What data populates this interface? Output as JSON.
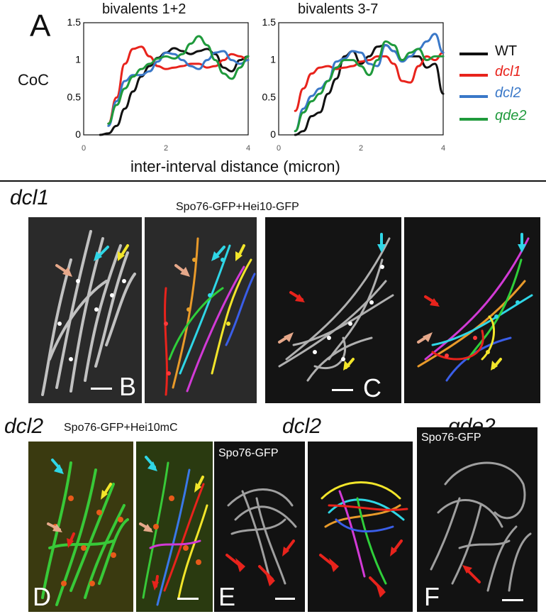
{
  "figure": {
    "panel_a_letter": "A",
    "y_axis_label": "CoC",
    "x_axis_label": "inter-interval distance (micron)",
    "legend": [
      {
        "label": "WT",
        "color": "#111111",
        "italic": false
      },
      {
        "label": "dcl1",
        "color": "#e8231c",
        "italic": true
      },
      {
        "label": "dcl2",
        "color": "#3a78c8",
        "italic": true
      },
      {
        "label": "qde2",
        "color": "#1f9a3c",
        "italic": true
      }
    ],
    "section_dcl1": "dcl1",
    "section_dcl1_subtitle": "Spo76-GFP+Hei10-GFP",
    "section_dcl2_left": "dcl2",
    "section_dcl2_left_subtitle": "Spo76-GFP+Hei10mC",
    "section_dcl2_mid": "dcl2",
    "section_qde2": "qde2",
    "label_spo76_e": "Spo76-GFP",
    "label_spo76_f": "Spo76-GFP",
    "letters": {
      "B": "B",
      "C": "C",
      "D": "D",
      "E": "E",
      "F": "F"
    }
  },
  "chart_data": [
    {
      "type": "line",
      "title": "bivalents 1+2",
      "ylabel": "CoC",
      "xlabel": "inter-interval distance (micron)",
      "xlim": [
        0,
        4
      ],
      "ylim": [
        0,
        1.5
      ],
      "xticks": [
        "0",
        "2",
        "4"
      ],
      "yticks": [
        "0",
        "0.5",
        "1",
        "1.5"
      ],
      "series": [
        {
          "name": "WT",
          "color": "#111111",
          "x": [
            0.4,
            0.6,
            0.8,
            1.0,
            1.2,
            1.4,
            1.6,
            1.8,
            2.0,
            2.2,
            2.4,
            2.6,
            2.8,
            3.0,
            3.2,
            3.4,
            3.6,
            3.8,
            4.0
          ],
          "y": [
            0.0,
            0.02,
            0.12,
            0.35,
            0.58,
            0.78,
            0.92,
            1.03,
            1.1,
            1.16,
            1.12,
            1.08,
            1.12,
            1.15,
            1.08,
            0.9,
            0.85,
            1.0,
            1.05
          ]
        },
        {
          "name": "dcl1",
          "color": "#e8231c",
          "x": [
            0.6,
            0.8,
            1.0,
            1.2,
            1.4,
            1.6,
            1.8,
            2.0,
            2.2,
            2.4,
            2.6,
            2.8,
            3.0,
            3.2,
            3.4,
            3.6,
            3.8,
            4.0
          ],
          "y": [
            0.15,
            0.5,
            0.95,
            1.15,
            1.18,
            1.05,
            0.92,
            0.88,
            0.9,
            0.92,
            0.95,
            0.95,
            0.9,
            0.92,
            1.0,
            1.08,
            1.05,
            1.0
          ]
        },
        {
          "name": "dcl2",
          "color": "#3a78c8",
          "x": [
            0.6,
            0.8,
            1.0,
            1.2,
            1.4,
            1.6,
            1.8,
            2.0,
            2.2,
            2.4,
            2.6,
            2.8,
            3.0,
            3.2,
            3.4,
            3.6,
            3.8,
            4.0
          ],
          "y": [
            0.12,
            0.45,
            0.72,
            0.8,
            0.8,
            0.85,
            0.98,
            1.1,
            1.08,
            1.0,
            0.92,
            0.88,
            1.0,
            1.1,
            1.12,
            1.0,
            0.95,
            1.0
          ]
        },
        {
          "name": "qde2",
          "color": "#1f9a3c",
          "x": [
            0.6,
            0.8,
            1.0,
            1.2,
            1.4,
            1.6,
            1.8,
            2.0,
            2.2,
            2.4,
            2.6,
            2.8,
            3.0,
            3.2,
            3.4,
            3.6,
            3.8,
            4.0
          ],
          "y": [
            0.15,
            0.4,
            0.62,
            0.78,
            0.88,
            0.95,
            1.02,
            1.05,
            1.02,
            1.08,
            1.22,
            1.32,
            1.2,
            1.0,
            0.82,
            0.75,
            0.9,
            1.05
          ]
        }
      ]
    },
    {
      "type": "line",
      "title": "bivalents 3-7",
      "ylabel": "",
      "xlabel": "inter-interval distance (micron)",
      "xlim": [
        0,
        4
      ],
      "ylim": [
        0,
        1.5
      ],
      "xticks": [
        "0",
        "2",
        "4"
      ],
      "yticks": [
        "0",
        "0.5",
        "1",
        "1.5"
      ],
      "series": [
        {
          "name": "WT",
          "color": "#111111",
          "x": [
            0.4,
            0.6,
            0.8,
            1.0,
            1.2,
            1.4,
            1.6,
            1.8,
            2.0,
            2.2,
            2.4,
            2.6,
            2.8,
            3.0,
            3.2,
            3.4,
            3.6,
            3.8,
            4.0
          ],
          "y": [
            0.0,
            0.05,
            0.25,
            0.3,
            0.55,
            0.75,
            1.05,
            1.12,
            0.95,
            1.05,
            1.18,
            1.2,
            1.12,
            1.0,
            1.05,
            1.05,
            0.9,
            0.95,
            0.55
          ]
        },
        {
          "name": "dcl1",
          "color": "#e8231c",
          "x": [
            0.4,
            0.6,
            0.8,
            1.0,
            1.2,
            1.4,
            1.6,
            1.8,
            2.0,
            2.2,
            2.4,
            2.6,
            2.8,
            3.0,
            3.2,
            3.4,
            3.6,
            3.8,
            4.0
          ],
          "y": [
            0.32,
            0.62,
            0.82,
            0.9,
            0.92,
            0.88,
            0.9,
            0.92,
            0.98,
            1.0,
            1.05,
            1.05,
            0.95,
            0.72,
            0.7,
            0.92,
            1.05,
            1.0,
            1.1
          ]
        },
        {
          "name": "dcl2",
          "color": "#3a78c8",
          "x": [
            0.4,
            0.6,
            0.8,
            1.0,
            1.2,
            1.4,
            1.6,
            1.8,
            2.0,
            2.2,
            2.4,
            2.6,
            2.8,
            3.0,
            3.2,
            3.4,
            3.6,
            3.8,
            4.0
          ],
          "y": [
            0.05,
            0.35,
            0.52,
            0.62,
            0.72,
            0.98,
            1.02,
            1.12,
            1.1,
            0.95,
            0.92,
            1.2,
            1.12,
            0.98,
            1.05,
            1.15,
            1.25,
            1.35,
            1.1
          ]
        },
        {
          "name": "qde2",
          "color": "#1f9a3c",
          "x": [
            0.4,
            0.6,
            0.8,
            1.0,
            1.2,
            1.4,
            1.6,
            1.8,
            2.0,
            2.2,
            2.4,
            2.6,
            2.8,
            3.0,
            3.2,
            3.4,
            3.6,
            3.8,
            4.0
          ],
          "y": [
            0.05,
            0.3,
            0.45,
            0.55,
            0.72,
            0.9,
            1.0,
            1.0,
            0.92,
            0.8,
            1.0,
            1.25,
            1.2,
            1.0,
            1.1,
            1.15,
            1.0,
            1.05,
            1.05
          ]
        }
      ]
    }
  ]
}
